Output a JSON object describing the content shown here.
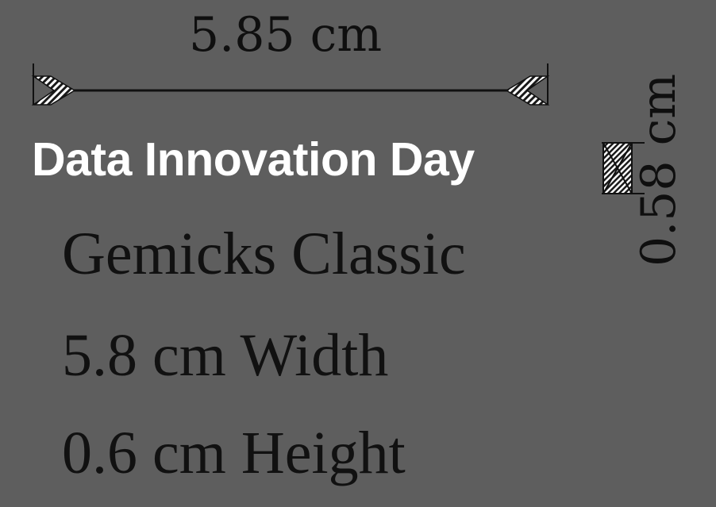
{
  "dimensions": {
    "width_label": "5.85 cm",
    "height_label": "0.58 cm"
  },
  "title": "Data Innovation Day",
  "specs": {
    "font": "Gemicks Classic",
    "width": "5.8 cm Width",
    "height": "0.6 cm Height"
  },
  "colors": {
    "background": "#5e5e5e",
    "title": "#ffffff",
    "text": "#111111"
  }
}
